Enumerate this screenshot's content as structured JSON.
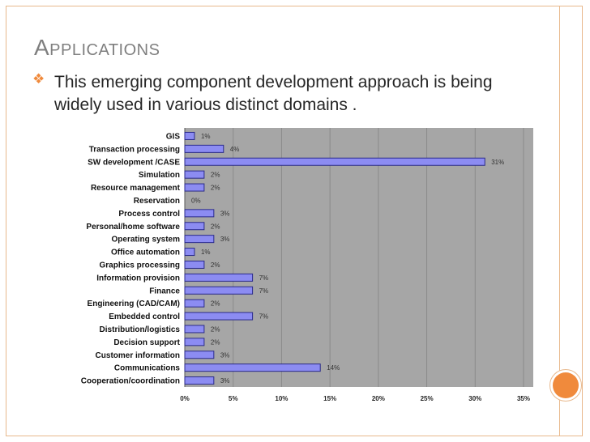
{
  "slide": {
    "title": "Applications",
    "bullet_icon": "orange-bullet-icon",
    "bullet_text": "This emerging component development approach is being widely used in various distinct domains ."
  },
  "colors": {
    "accent": "#f08a3c",
    "frame": "#e8b88c",
    "bar_fill": "#8c8cf2",
    "plot_bg": "#a6a6a6"
  },
  "chart_data": {
    "type": "bar",
    "orientation": "horizontal",
    "categories": [
      "GIS",
      "Transaction processing",
      "SW development /CASE",
      "Simulation",
      "Resource management",
      "Reservation",
      "Process control",
      "Personal/home software",
      "Operating system",
      "Office automation",
      "Graphics processing",
      "Information provision",
      "Finance",
      "Engineering (CAD/CAM)",
      "Embedded control",
      "Distribution/logistics",
      "Decision support",
      "Customer information",
      "Communications",
      "Cooperation/coordination"
    ],
    "values": [
      1,
      4,
      31,
      2,
      2,
      0,
      3,
      2,
      3,
      1,
      2,
      7,
      7,
      2,
      7,
      2,
      2,
      3,
      14,
      3
    ],
    "value_labels": [
      "1%",
      "4%",
      "31%",
      "2%",
      "2%",
      "0%",
      "3%",
      "2%",
      "3%",
      "1%",
      "2%",
      "7%",
      "7%",
      "2%",
      "7%",
      "2%",
      "2%",
      "3%",
      "14%",
      "3%"
    ],
    "xlim": [
      0,
      35
    ],
    "xticks": [
      "0%",
      "5%",
      "10%",
      "15%",
      "20%",
      "25%",
      "30%",
      "35%"
    ],
    "grid": true,
    "legend": "none"
  }
}
